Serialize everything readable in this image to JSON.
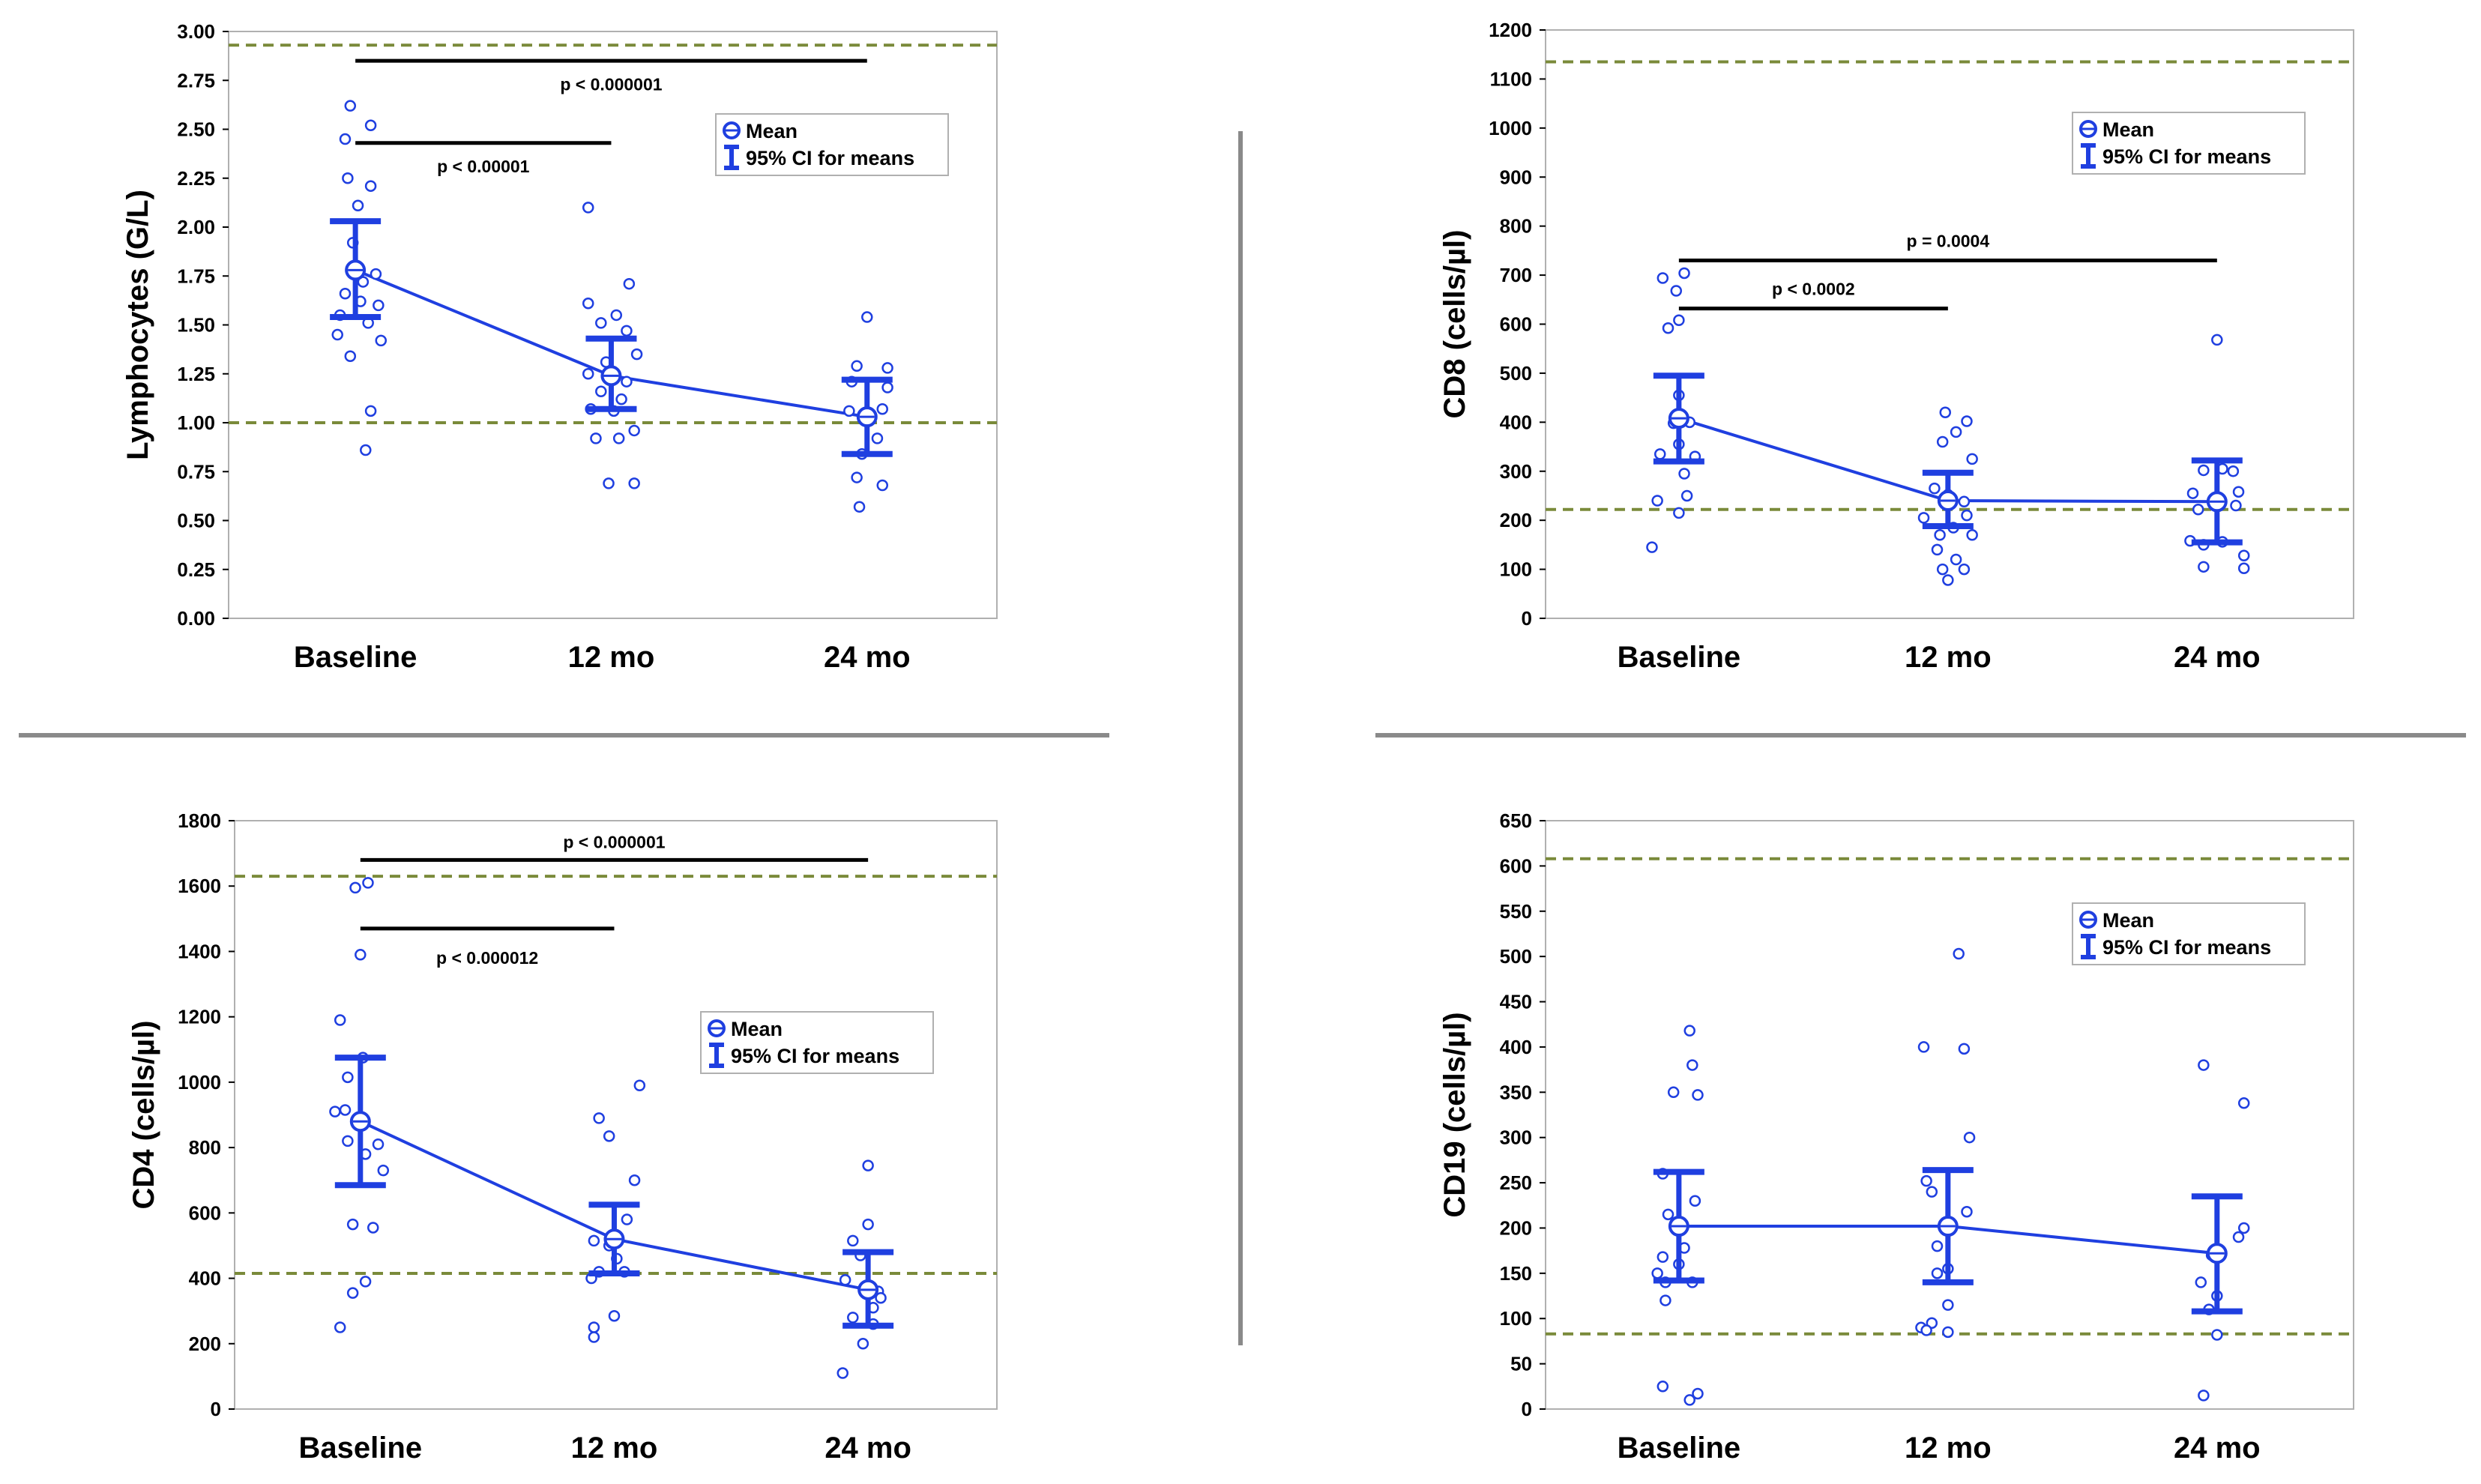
{
  "colors": {
    "series": "#1f3fe0",
    "reference": "#7a8a3a",
    "bracket": "#000000",
    "divider": "#8a8a8a",
    "frame": "#b0b0b0"
  },
  "legend": {
    "mean_label": "Mean",
    "ci_label": "95% CI for means"
  },
  "chart_data": [
    {
      "type": "scatter",
      "id": "lymphocytes",
      "ylabel": "Lymphocytes (G/L)",
      "categories": [
        "Baseline",
        "12 mo",
        "24 mo"
      ],
      "ylim": [
        0,
        3.0
      ],
      "yticks": [
        0,
        0.25,
        0.5,
        0.75,
        1.0,
        1.25,
        1.5,
        1.75,
        2.0,
        2.25,
        2.5,
        2.75,
        3.0
      ],
      "ytick_labels": [
        "0.00",
        "0.25",
        "0.50",
        "0.75",
        "1.00",
        "1.25",
        "1.50",
        "1.75",
        "2.00",
        "2.25",
        "2.50",
        "2.75",
        "3.00"
      ],
      "reference_lines": [
        2.93,
        1.0
      ],
      "legend_position": "upper-right",
      "means": [
        1.78,
        1.24,
        1.03
      ],
      "ci_low": [
        1.54,
        1.07,
        0.84
      ],
      "ci_high": [
        2.03,
        1.43,
        1.22
      ],
      "points": [
        [
          [
            -0.02,
            2.62
          ],
          [
            0.06,
            2.52
          ],
          [
            -0.04,
            2.45
          ],
          [
            -0.03,
            2.25
          ],
          [
            0.06,
            2.21
          ],
          [
            0.01,
            2.11
          ],
          [
            -0.01,
            1.92
          ],
          [
            0.08,
            1.76
          ],
          [
            0.03,
            1.72
          ],
          [
            -0.04,
            1.66
          ],
          [
            0.02,
            1.62
          ],
          [
            0.09,
            1.6
          ],
          [
            -0.06,
            1.55
          ],
          [
            0.05,
            1.51
          ],
          [
            -0.07,
            1.45
          ],
          [
            0.1,
            1.42
          ],
          [
            -0.02,
            1.34
          ],
          [
            0.06,
            1.06
          ],
          [
            0.04,
            0.86
          ]
        ],
        [
          [
            -0.09,
            2.1
          ],
          [
            -0.09,
            1.61
          ],
          [
            0.07,
            1.71
          ],
          [
            0.02,
            1.55
          ],
          [
            -0.04,
            1.51
          ],
          [
            0.06,
            1.47
          ],
          [
            0.1,
            1.35
          ],
          [
            -0.02,
            1.31
          ],
          [
            -0.09,
            1.25
          ],
          [
            0.06,
            1.21
          ],
          [
            -0.04,
            1.16
          ],
          [
            -0.08,
            1.07
          ],
          [
            0.01,
            1.06
          ],
          [
            -0.06,
            0.92
          ],
          [
            0.03,
            0.92
          ],
          [
            0.09,
            0.96
          ],
          [
            -0.01,
            0.69
          ],
          [
            0.09,
            0.69
          ],
          [
            0.04,
            1.12
          ]
        ],
        [
          [
            0.0,
            1.54
          ],
          [
            -0.04,
            1.29
          ],
          [
            0.08,
            1.28
          ],
          [
            -0.06,
            1.21
          ],
          [
            0.08,
            1.18
          ],
          [
            0.06,
            1.07
          ],
          [
            -0.07,
            1.06
          ],
          [
            0.04,
            0.92
          ],
          [
            -0.02,
            0.84
          ],
          [
            -0.04,
            0.72
          ],
          [
            0.06,
            0.68
          ],
          [
            -0.03,
            0.57
          ]
        ]
      ],
      "brackets": [
        {
          "from": 0,
          "to": 2,
          "y": 2.85,
          "label": "p < 0.000001",
          "label_y": 2.73
        },
        {
          "from": 0,
          "to": 1,
          "y": 2.43,
          "label": "p < 0.00001",
          "label_y": 2.31
        }
      ]
    },
    {
      "type": "scatter",
      "id": "cd8",
      "ylabel": "CD8 (cells/µl)",
      "categories": [
        "Baseline",
        "12 mo",
        "24 mo"
      ],
      "ylim": [
        0,
        1200
      ],
      "yticks": [
        0,
        100,
        200,
        300,
        400,
        500,
        600,
        700,
        800,
        900,
        1000,
        1100,
        1200
      ],
      "ytick_labels": [
        "0",
        "100",
        "200",
        "300",
        "400",
        "500",
        "600",
        "700",
        "800",
        "900",
        "1000",
        "1100",
        "1200"
      ],
      "reference_lines": [
        1135,
        222
      ],
      "legend_position": "upper-right",
      "means": [
        408,
        240,
        238
      ],
      "ci_low": [
        320,
        188,
        155
      ],
      "ci_high": [
        495,
        297,
        322
      ],
      "points": [
        [
          [
            -0.06,
            694
          ],
          [
            0.02,
            704
          ],
          [
            -0.01,
            668
          ],
          [
            0.0,
            608
          ],
          [
            -0.04,
            592
          ],
          [
            0.0,
            455
          ],
          [
            -0.02,
            398
          ],
          [
            0.04,
            400
          ],
          [
            -0.07,
            335
          ],
          [
            0.06,
            330
          ],
          [
            0.0,
            355
          ],
          [
            0.02,
            295
          ],
          [
            -0.08,
            240
          ],
          [
            0.03,
            250
          ],
          [
            0.0,
            215
          ],
          [
            -0.1,
            145
          ]
        ],
        [
          [
            -0.01,
            420
          ],
          [
            0.03,
            380
          ],
          [
            0.07,
            402
          ],
          [
            -0.02,
            360
          ],
          [
            0.09,
            325
          ],
          [
            -0.05,
            265
          ],
          [
            0.0,
            252
          ],
          [
            0.06,
            238
          ],
          [
            -0.09,
            205
          ],
          [
            0.07,
            210
          ],
          [
            -0.03,
            170
          ],
          [
            0.02,
            185
          ],
          [
            0.09,
            170
          ],
          [
            -0.04,
            140
          ],
          [
            0.03,
            120
          ],
          [
            -0.02,
            100
          ],
          [
            0.06,
            100
          ],
          [
            0.0,
            78
          ]
        ],
        [
          [
            0.0,
            568
          ],
          [
            -0.05,
            302
          ],
          [
            0.02,
            305
          ],
          [
            0.06,
            300
          ],
          [
            -0.09,
            255
          ],
          [
            -0.07,
            222
          ],
          [
            0.07,
            230
          ],
          [
            0.08,
            258
          ],
          [
            -0.1,
            158
          ],
          [
            -0.05,
            150
          ],
          [
            0.02,
            156
          ],
          [
            -0.05,
            105
          ],
          [
            0.1,
            128
          ],
          [
            0.1,
            102
          ]
        ]
      ],
      "brackets": [
        {
          "from": 0,
          "to": 2,
          "y": 730,
          "label": "p = 0.0004",
          "label_y": 770
        },
        {
          "from": 0,
          "to": 1,
          "y": 632,
          "label": "p < 0.0002",
          "label_y": 672
        }
      ]
    },
    {
      "type": "scatter",
      "id": "cd4",
      "ylabel": "CD4 (cells/µl)",
      "categories": [
        "Baseline",
        "12 mo",
        "24 mo"
      ],
      "ylim": [
        0,
        1800
      ],
      "yticks": [
        0,
        200,
        400,
        600,
        800,
        1000,
        1200,
        1400,
        1600,
        1800
      ],
      "ytick_labels": [
        "0",
        "200",
        "400",
        "600",
        "800",
        "1000",
        "1200",
        "1400",
        "1600",
        "1800"
      ],
      "reference_lines": [
        1630,
        415
      ],
      "legend_position": "right",
      "means": [
        880,
        520,
        365
      ],
      "ci_low": [
        685,
        415,
        255
      ],
      "ci_high": [
        1075,
        625,
        480
      ],
      "points": [
        [
          [
            0.03,
            1610
          ],
          [
            -0.02,
            1595
          ],
          [
            0.0,
            1390
          ],
          [
            -0.08,
            1190
          ],
          [
            -0.06,
            915
          ],
          [
            -0.1,
            910
          ],
          [
            -0.05,
            820
          ],
          [
            0.01,
            1075
          ],
          [
            -0.05,
            1015
          ],
          [
            0.07,
            810
          ],
          [
            0.02,
            780
          ],
          [
            0.09,
            730
          ],
          [
            -0.03,
            565
          ],
          [
            0.05,
            555
          ],
          [
            0.02,
            390
          ],
          [
            -0.03,
            355
          ],
          [
            -0.08,
            250
          ]
        ],
        [
          [
            0.1,
            990
          ],
          [
            -0.06,
            890
          ],
          [
            -0.02,
            835
          ],
          [
            0.05,
            580
          ],
          [
            0.08,
            700
          ],
          [
            -0.08,
            515
          ],
          [
            -0.02,
            500
          ],
          [
            0.01,
            460
          ],
          [
            0.04,
            420
          ],
          [
            -0.06,
            420
          ],
          [
            -0.09,
            400
          ],
          [
            0.0,
            285
          ],
          [
            -0.08,
            250
          ],
          [
            -0.08,
            220
          ]
        ],
        [
          [
            0.0,
            745
          ],
          [
            0.0,
            565
          ],
          [
            -0.06,
            515
          ],
          [
            -0.03,
            470
          ],
          [
            -0.09,
            395
          ],
          [
            0.04,
            360
          ],
          [
            0.05,
            340
          ],
          [
            0.02,
            310
          ],
          [
            -0.06,
            280
          ],
          [
            0.02,
            260
          ],
          [
            -0.02,
            200
          ],
          [
            -0.1,
            110
          ]
        ]
      ],
      "brackets": [
        {
          "from": 0,
          "to": 2,
          "y": 1680,
          "label": "p < 0.000001",
          "label_y": 1735
        },
        {
          "from": 0,
          "to": 1,
          "y": 1470,
          "label": "p < 0.000012",
          "label_y": 1380
        }
      ]
    },
    {
      "type": "scatter",
      "id": "cd19",
      "ylabel": "CD19 (cells/µl)",
      "categories": [
        "Baseline",
        "12 mo",
        "24 mo"
      ],
      "ylim": [
        0,
        650
      ],
      "yticks": [
        0,
        50,
        100,
        150,
        200,
        250,
        300,
        350,
        400,
        450,
        500,
        550,
        600,
        650
      ],
      "ytick_labels": [
        "0",
        "50",
        "100",
        "150",
        "200",
        "250",
        "300",
        "350",
        "400",
        "450",
        "500",
        "550",
        "600",
        "650"
      ],
      "reference_lines": [
        608,
        83
      ],
      "legend_position": "upper-right",
      "means": [
        202,
        202,
        172
      ],
      "ci_low": [
        142,
        140,
        108
      ],
      "ci_high": [
        262,
        264,
        235
      ],
      "points": [
        [
          [
            0.04,
            418
          ],
          [
            0.05,
            380
          ],
          [
            -0.02,
            350
          ],
          [
            0.07,
            347
          ],
          [
            -0.06,
            260
          ],
          [
            0.06,
            230
          ],
          [
            -0.04,
            215
          ],
          [
            0.0,
            200
          ],
          [
            0.02,
            178
          ],
          [
            -0.06,
            168
          ],
          [
            -0.08,
            150
          ],
          [
            0.0,
            160
          ],
          [
            -0.05,
            140
          ],
          [
            -0.05,
            120
          ],
          [
            0.05,
            140
          ],
          [
            -0.06,
            25
          ],
          [
            0.07,
            17
          ],
          [
            0.04,
            10
          ]
        ],
        [
          [
            0.04,
            503
          ],
          [
            -0.09,
            400
          ],
          [
            0.06,
            398
          ],
          [
            0.08,
            300
          ],
          [
            -0.08,
            252
          ],
          [
            -0.06,
            240
          ],
          [
            0.07,
            218
          ],
          [
            -0.04,
            180
          ],
          [
            0.0,
            155
          ],
          [
            -0.04,
            150
          ],
          [
            0.0,
            115
          ],
          [
            -0.06,
            95
          ],
          [
            -0.1,
            90
          ],
          [
            -0.08,
            87
          ],
          [
            0.0,
            85
          ]
        ],
        [
          [
            -0.05,
            380
          ],
          [
            0.1,
            338
          ],
          [
            0.1,
            200
          ],
          [
            0.08,
            190
          ],
          [
            -0.02,
            170
          ],
          [
            -0.06,
            140
          ],
          [
            0.0,
            125
          ],
          [
            -0.03,
            110
          ],
          [
            0.0,
            82
          ],
          [
            -0.05,
            15
          ]
        ]
      ],
      "brackets": []
    }
  ]
}
